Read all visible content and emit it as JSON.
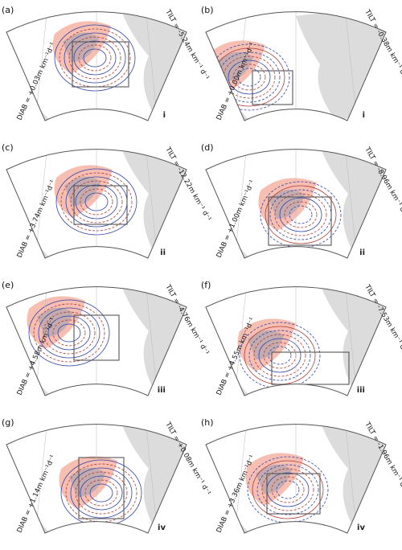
{
  "figure": {
    "panels": [
      {
        "label": "(a)",
        "diab": "DIAB = +0.03m km⁻¹d⁻¹",
        "tilt": "TILT = -5.24m km⁻¹ d⁻¹",
        "case": "i"
      },
      {
        "label": "(b)",
        "diab": "DIAB = +0.00m km⁻¹d⁻¹",
        "tilt": "TILT = -0.38m km⁻¹ d⁻¹",
        "case": "i"
      },
      {
        "label": "(c)",
        "diab": "DIAB = +3.74m km⁻¹d⁻¹",
        "tilt": "TILT = -12.22m km⁻¹ d⁻¹",
        "case": "ii"
      },
      {
        "label": "(d)",
        "diab": "DIAB = +1.00m km⁻¹d⁻¹",
        "tilt": "TILT = -8.96m km⁻¹ d⁻¹",
        "case": "ii"
      },
      {
        "label": "(e)",
        "diab": "DIAB = +4.58m km⁻¹d⁻¹",
        "tilt": "TILT = -4.76m km⁻¹ d⁻¹",
        "case": "iii"
      },
      {
        "label": "(f)",
        "diab": "DIAB = +4.55m km⁻¹d⁻¹",
        "tilt": "TILT = -7.53m km⁻¹ d⁻¹",
        "case": "iii"
      },
      {
        "label": "(g)",
        "diab": "DIAB = +1.14m km⁻¹d⁻¹",
        "tilt": "TILT = +0.08m km⁻¹ d⁻¹",
        "case": "iv"
      },
      {
        "label": "(h)",
        "diab": "DIAB = +3.36m km⁻¹d⁻¹",
        "tilt": "TILT = -1.96m km⁻¹ d⁻¹",
        "case": "iv"
      }
    ],
    "colors": {
      "land": "#dcdcdc",
      "precip": "#f4a898",
      "cloud": "#9a9aab",
      "contour_blue": "#3040a8",
      "contour_red": "#b03838",
      "frame": "#555555",
      "box": "#555555"
    }
  }
}
